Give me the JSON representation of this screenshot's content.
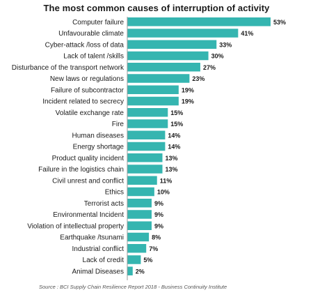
{
  "chart_data": {
    "type": "bar",
    "orientation": "horizontal",
    "title": "The most common causes of interruption of activity",
    "categories": [
      "Computer failure",
      "Unfavourable climate",
      "Cyber-attack /loss of data",
      "Lack of talent /skills",
      "Disturbance of the transport network",
      "New laws or regulations",
      "Failure of subcontractor",
      "Incident related to secrecy",
      "Volatile exchange rate",
      "Fire",
      "Human diseases",
      "Energy shortage",
      "Product quality incident",
      "Failure in the logistics chain",
      "Civil unrest and conflict",
      "Ethics",
      "Terrorist acts",
      "Environmental Incident",
      "Violation of intellectual property",
      "Earthquake /tsunami",
      "Industrial conflict",
      "Lack of credit",
      "Animal Diseases"
    ],
    "values": [
      53,
      41,
      33,
      30,
      27,
      23,
      19,
      19,
      15,
      15,
      14,
      14,
      13,
      13,
      11,
      10,
      9,
      9,
      9,
      8,
      7,
      5,
      2
    ],
    "value_labels": [
      "53%",
      "41%",
      "33%",
      "30%",
      "27%",
      "23%",
      "19%",
      "19%",
      "15%",
      "15%",
      "14%",
      "14%",
      "13%",
      "13%",
      "11%",
      "10%",
      "9%",
      "9%",
      "9%",
      "8%",
      "7%",
      "5%",
      "2%"
    ],
    "bar_color": "#35b5b0",
    "grid": false,
    "legend": "none",
    "source": "Source : BCI Supply Chain Resilience Report 2018 - Business Continuity Institute"
  }
}
